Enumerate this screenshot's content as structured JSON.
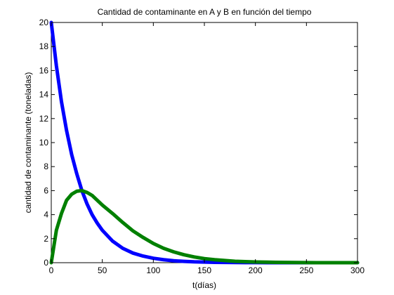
{
  "chart_data": {
    "type": "line",
    "title": "Cantidad de contaminante en A y B en función del tiempo",
    "xlabel": "t(días)",
    "ylabel": "cantidad de contaminante (toneladas)",
    "xlim": [
      0,
      300
    ],
    "ylim": [
      0,
      20
    ],
    "xticks": [
      0,
      50,
      100,
      150,
      200,
      250,
      300
    ],
    "yticks": [
      0,
      2,
      4,
      6,
      8,
      10,
      12,
      14,
      16,
      18,
      20
    ],
    "grid": false,
    "legend": "none",
    "x": [
      0,
      5,
      10,
      15,
      20,
      25,
      30,
      35,
      40,
      45,
      50,
      60,
      70,
      80,
      90,
      100,
      110,
      120,
      130,
      140,
      150,
      160,
      170,
      180,
      190,
      200,
      220,
      240,
      260,
      280,
      300
    ],
    "series": [
      {
        "color": "#0000ff",
        "values": [
          20.0,
          16.4,
          13.4,
          11.0,
          9.0,
          7.4,
          6.0,
          4.9,
          4.0,
          3.3,
          2.7,
          1.8,
          1.2,
          0.8,
          0.55,
          0.37,
          0.25,
          0.16,
          0.11,
          0.07,
          0.05,
          0.03,
          0.02,
          0.015,
          0.01,
          0.007,
          0.0,
          0.0,
          0.0,
          0.0,
          0.0
        ]
      },
      {
        "color": "#008000",
        "values": [
          0.0,
          2.7,
          4.1,
          5.2,
          5.7,
          5.95,
          6.0,
          5.85,
          5.6,
          5.2,
          4.8,
          4.1,
          3.35,
          2.65,
          2.1,
          1.6,
          1.2,
          0.9,
          0.66,
          0.48,
          0.34,
          0.25,
          0.18,
          0.12,
          0.09,
          0.06,
          0.03,
          0.015,
          0.0,
          0.0,
          0.0
        ]
      }
    ]
  }
}
